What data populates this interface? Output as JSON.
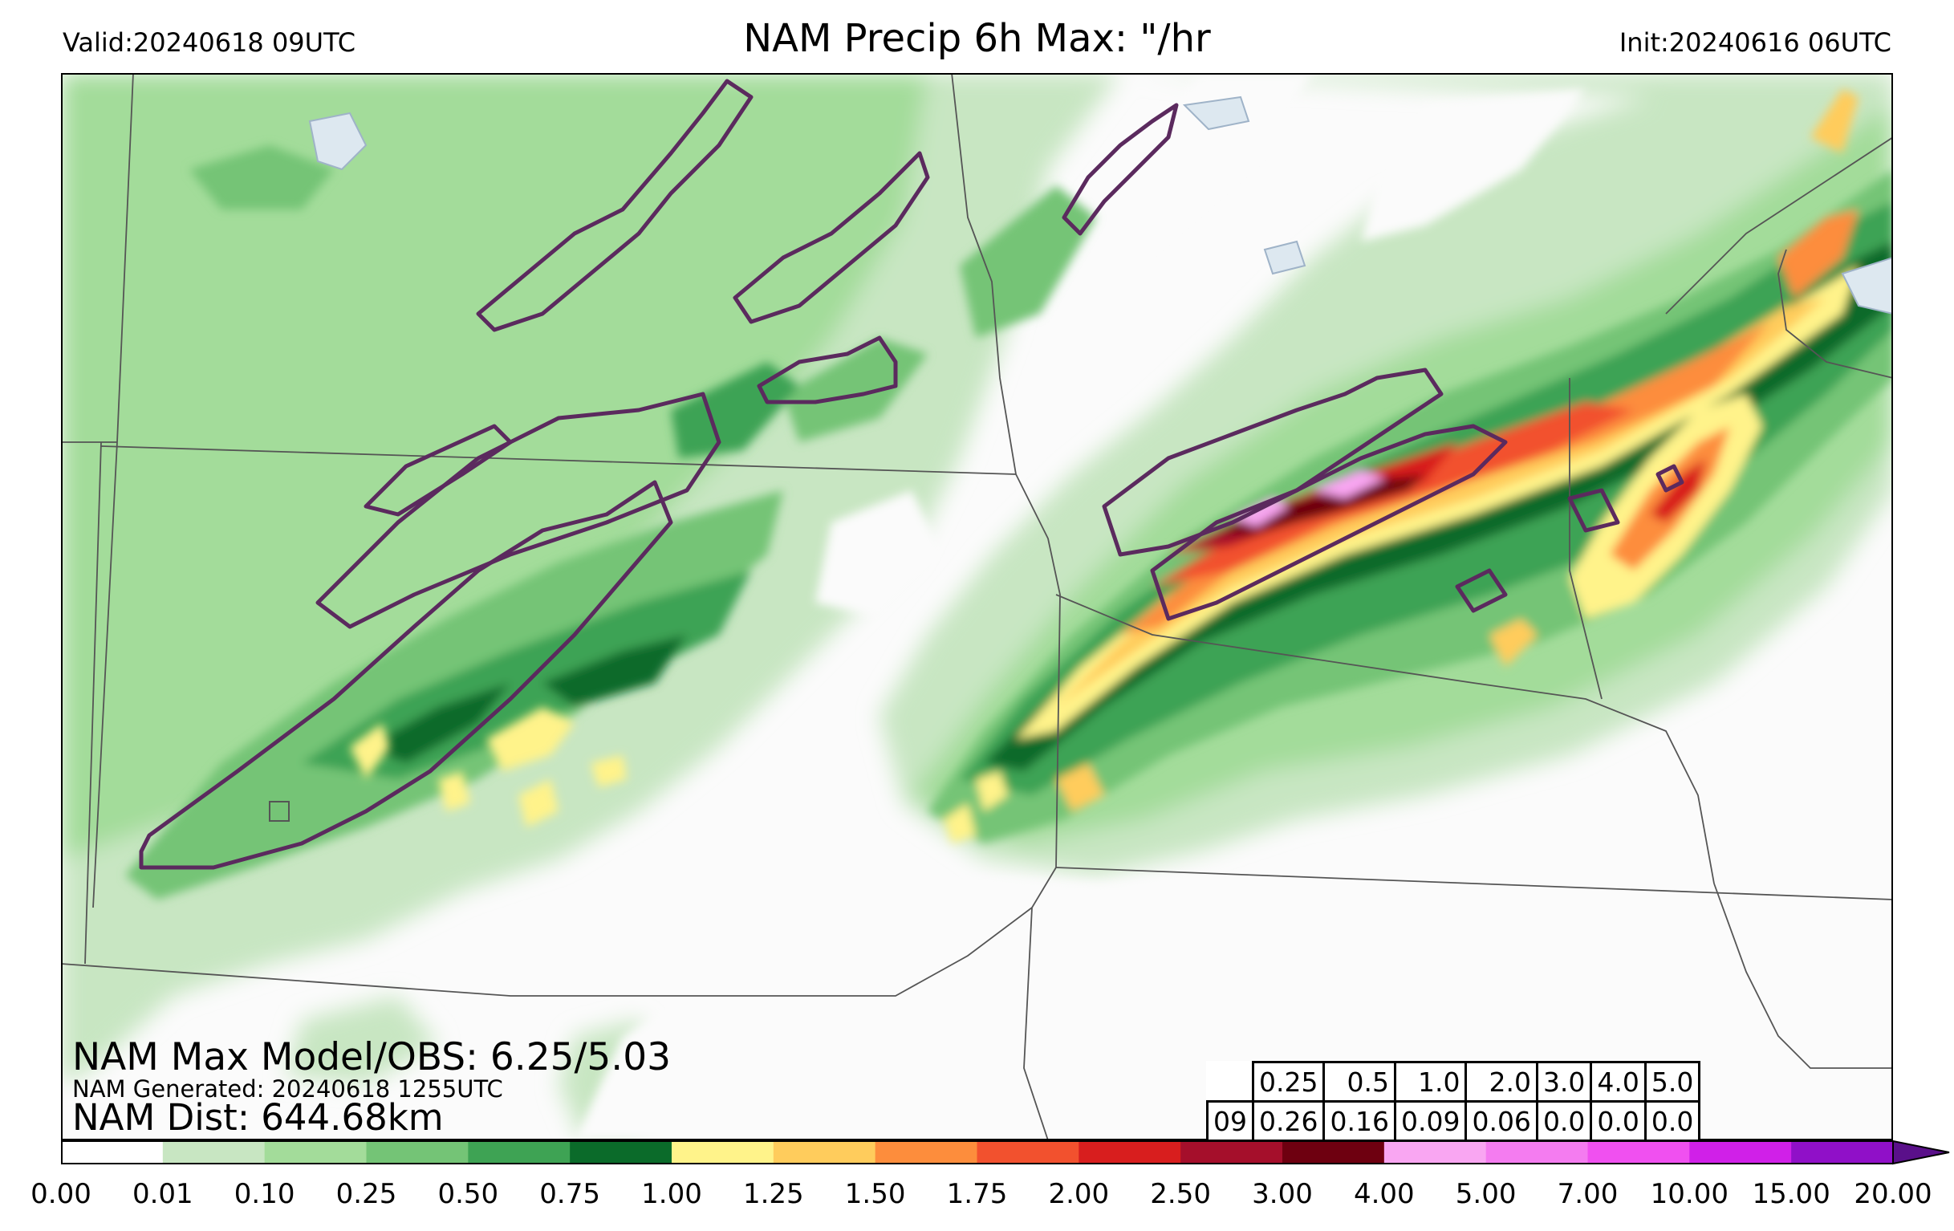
{
  "header": {
    "valid": "Valid:20240618 09UTC",
    "title": "NAM Precip 6h Max: \"/hr",
    "init": "Init:20240616 06UTC"
  },
  "overlay": {
    "max_model_obs": "NAM Max Model/OBS: 6.25/5.03",
    "generated": "NAM Generated: 20240618 1255UTC",
    "dist": "NAM Dist: 644.68km"
  },
  "stats_table": {
    "thresholds": [
      "0.25",
      "0.5",
      "1.0",
      "2.0",
      "3.0",
      "4.0",
      "5.0"
    ],
    "hour": "09",
    "values": [
      "0.26",
      "0.16",
      "0.09",
      "0.06",
      "0.0",
      "0.0",
      "0.0"
    ]
  },
  "colorbar": {
    "ticks": [
      "0.00",
      "0.01",
      "0.10",
      "0.25",
      "0.50",
      "0.75",
      "1.00",
      "1.25",
      "1.50",
      "1.75",
      "2.00",
      "2.50",
      "3.00",
      "4.00",
      "5.00",
      "7.00",
      "10.00",
      "15.00",
      "20.00"
    ],
    "colors": [
      "#ffffff",
      "#c8e6c2",
      "#a3dc9a",
      "#74c476",
      "#3ea354",
      "#0b6b2a",
      "#fff38a",
      "#ffcc5c",
      "#fd8d3c",
      "#f2512e",
      "#d81e1e",
      "#a50f2b",
      "#6e0010",
      "#f9a6f2",
      "#f47cf0",
      "#f050f0",
      "#d020e8",
      "#9010c8"
    ],
    "extend_color": "#5a108a"
  },
  "colors": {
    "contour": "#5b2a5e",
    "border": "#555555",
    "water": "#dde8f0"
  }
}
